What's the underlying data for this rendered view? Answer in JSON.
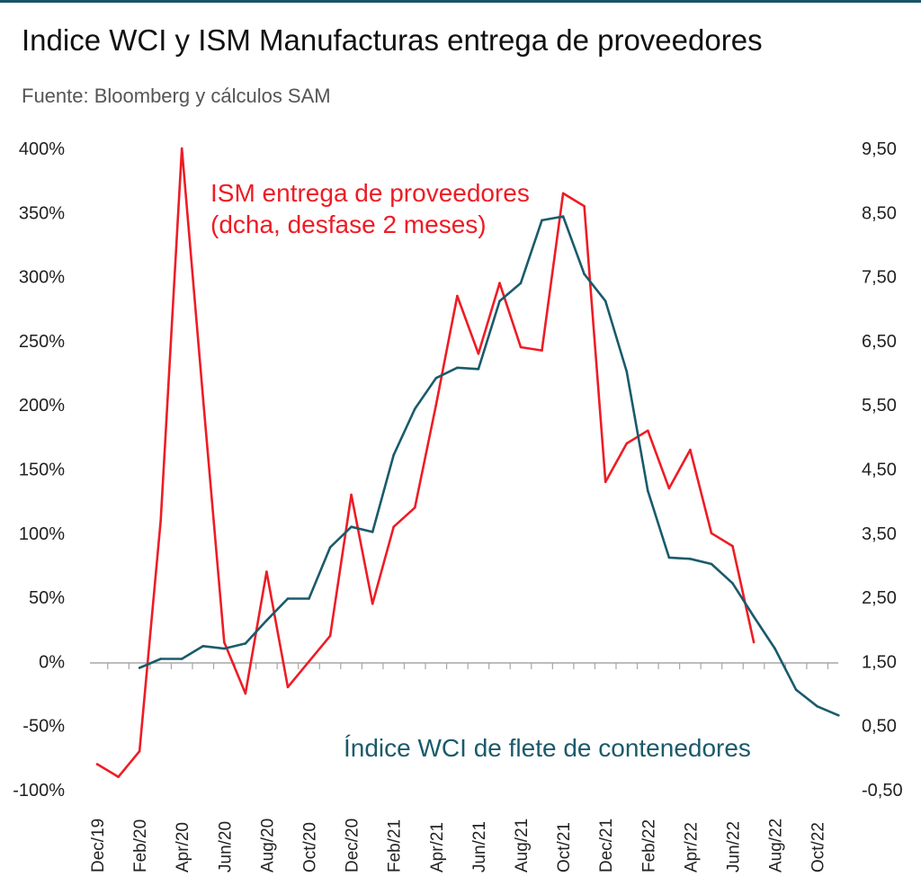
{
  "title": "Indice WCI y ISM Manufacturas entrega de proveedores",
  "subtitle": "Fuente: Bloomberg y cálculos SAM",
  "chart_data": {
    "type": "line",
    "title": "Indice WCI y ISM Manufacturas entrega de proveedores",
    "subtitle": "Fuente: Bloomberg y cálculos SAM",
    "x_months": [
      "Dec/19",
      "Jan/20",
      "Feb/20",
      "Mar/20",
      "Apr/20",
      "May/20",
      "Jun/20",
      "Jul/20",
      "Aug/20",
      "Sep/20",
      "Oct/20",
      "Nov/20",
      "Dec/20",
      "Jan/21",
      "Feb/21",
      "Mar/21",
      "Apr/21",
      "May/21",
      "Jun/21",
      "Jul/21",
      "Aug/21",
      "Sep/21",
      "Oct/21",
      "Nov/21",
      "Dec/21",
      "Jan/22",
      "Feb/22",
      "Mar/22",
      "Apr/22",
      "May/22",
      "Jun/22",
      "Jul/22",
      "Aug/22",
      "Sep/22",
      "Oct/22",
      "Nov/22"
    ],
    "x_tick_labels": [
      "Dec/19",
      "Feb/20",
      "Apr/20",
      "Jun/20",
      "Aug/20",
      "Oct/20",
      "Dec/20",
      "Feb/21",
      "Apr/21",
      "Jun/21",
      "Aug/21",
      "Oct/21",
      "Dec/21",
      "Feb/22",
      "Apr/22",
      "Jun/22",
      "Aug/22",
      "Oct/22"
    ],
    "y_left": {
      "ticks": [
        "400%",
        "350%",
        "300%",
        "250%",
        "200%",
        "150%",
        "100%",
        "50%",
        "0%",
        "-50%",
        "-100%"
      ],
      "range": [
        -100,
        400
      ],
      "unit": "%"
    },
    "y_right": {
      "ticks": [
        "9,50",
        "8,50",
        "7,50",
        "6,50",
        "5,50",
        "4,50",
        "3,50",
        "2,50",
        "1,50",
        "0,50",
        "-0,50"
      ],
      "range": [
        -0.5,
        9.5
      ]
    },
    "series": [
      {
        "name": "ISM entrega de proveedores (dcha, desfase 2 meses)",
        "axis": "right",
        "color": "#ee1c25",
        "start_index": 0,
        "values": [
          -0.1,
          -0.3,
          0.1,
          3.7,
          9.5,
          5.6,
          1.8,
          1.0,
          2.9,
          1.1,
          1.5,
          1.9,
          4.1,
          2.4,
          3.6,
          3.9,
          5.5,
          7.2,
          6.3,
          7.4,
          6.4,
          6.35,
          8.8,
          8.6,
          4.3,
          4.9,
          5.1,
          4.2,
          4.8,
          3.5,
          3.3,
          1.8
        ]
      },
      {
        "name": "Índice WCI de flete de contenedores",
        "axis": "left",
        "color": "#1a5b6b",
        "start_index": 2,
        "values": [
          -5,
          2,
          2,
          12,
          10,
          14,
          32,
          49,
          49,
          89,
          105,
          101,
          161,
          197,
          221,
          229,
          228,
          281,
          295,
          344,
          347,
          302,
          281,
          226,
          133,
          81,
          80,
          76,
          61,
          35,
          10,
          -22,
          -35,
          -42
        ]
      }
    ],
    "annotations": [
      {
        "text_lines": [
          "ISM entrega de proveedores",
          "(dcha, desfase 2 meses)"
        ],
        "color": "#ee1c25"
      },
      {
        "text_lines": [
          "Índice WCI de flete de contenedores"
        ],
        "color": "#1a5b6b"
      }
    ]
  }
}
